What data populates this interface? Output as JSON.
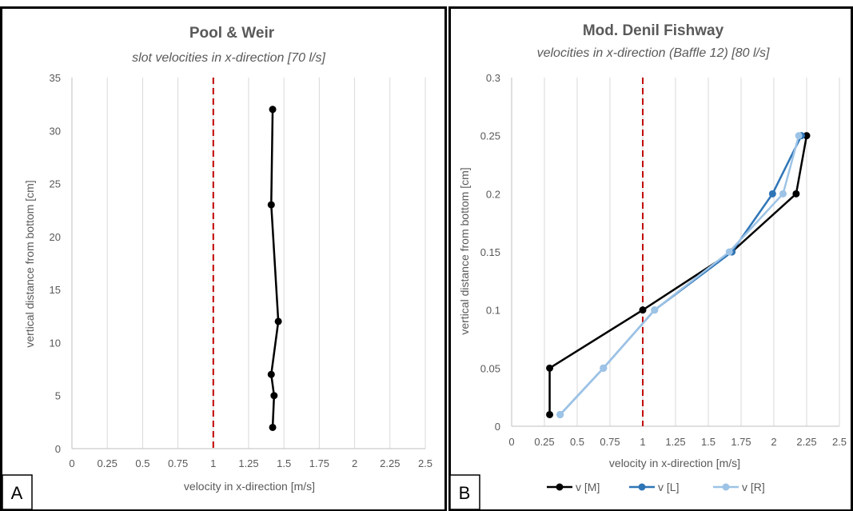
{
  "chart_data": [
    {
      "type": "line",
      "panel_label": "A",
      "title": "Pool & Weir",
      "subtitle": "slot velocities in x-direction [70 l/s]",
      "xlabel": "velocity in x-direction [m/s]",
      "ylabel": "vertical distance from bottom [cm]",
      "xlim": [
        0,
        2.5
      ],
      "ylim": [
        0,
        35
      ],
      "xticks": [
        "0",
        "0.25",
        "0.5",
        "0.75",
        "1",
        "1.25",
        "1.5",
        "1.75",
        "2",
        "2.25",
        "2.5"
      ],
      "yticks": [
        "0",
        "5",
        "10",
        "15",
        "20",
        "25",
        "30",
        "35"
      ],
      "grid": "vertical",
      "reference_line": {
        "x": 1,
        "style": "dashed",
        "color": "#c00000"
      },
      "series": [
        {
          "color": "#000000",
          "points": [
            [
              1.42,
              2
            ],
            [
              1.43,
              5
            ],
            [
              1.41,
              7
            ],
            [
              1.46,
              12
            ],
            [
              1.41,
              23
            ],
            [
              1.42,
              32
            ]
          ]
        }
      ]
    },
    {
      "type": "line",
      "panel_label": "B",
      "title": "Mod. Denil Fishway",
      "subtitle": "velocities in x-direction (Baffle 12) [80 l/s]",
      "xlabel": "velocity in x-direction [m/s]",
      "ylabel": "vertical distance from bottom [cm]",
      "xlim": [
        0,
        2.5
      ],
      "ylim": [
        0,
        0.3
      ],
      "xticks": [
        "0",
        "0.25",
        "0.5",
        "0.75",
        "1",
        "1.25",
        "1.5",
        "1.75",
        "2",
        "2.25",
        "2.5"
      ],
      "yticks": [
        "0",
        "0.05",
        "0.1",
        "0.15",
        "0.2",
        "0.25",
        "0.3"
      ],
      "grid": "vertical",
      "legend_position": "bottom",
      "reference_line": {
        "x": 1,
        "style": "dashed",
        "color": "#c00000"
      },
      "series": [
        {
          "name": "v [M]",
          "color": "#000000",
          "points": [
            [
              0.29,
              0.01
            ],
            [
              0.29,
              0.05
            ],
            [
              1.0,
              0.1
            ],
            [
              1.68,
              0.15
            ],
            [
              2.17,
              0.2
            ],
            [
              2.25,
              0.25
            ]
          ]
        },
        {
          "name": "v [L]",
          "color": "#2e75b6",
          "points": [
            [
              0.37,
              0.01
            ],
            [
              0.7,
              0.05
            ],
            [
              1.09,
              0.1
            ],
            [
              1.68,
              0.15
            ],
            [
              1.99,
              0.2
            ],
            [
              2.21,
              0.25
            ]
          ]
        },
        {
          "name": "v [R]",
          "color": "#9dc3e6",
          "points": [
            [
              0.37,
              0.01
            ],
            [
              0.7,
              0.05
            ],
            [
              1.09,
              0.1
            ],
            [
              1.66,
              0.15
            ],
            [
              2.07,
              0.2
            ],
            [
              2.19,
              0.25
            ]
          ]
        }
      ]
    }
  ]
}
